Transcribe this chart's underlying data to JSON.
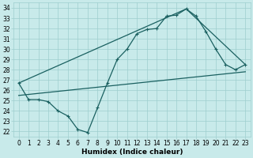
{
  "xlabel": "Humidex (Indice chaleur)",
  "bg_color": "#c8eaea",
  "grid_color": "#9ecece",
  "line_color": "#1a6060",
  "xlim": [
    -0.5,
    23.5
  ],
  "ylim": [
    21.5,
    34.5
  ],
  "xticks": [
    0,
    1,
    2,
    3,
    4,
    5,
    6,
    7,
    8,
    9,
    10,
    11,
    12,
    13,
    14,
    15,
    16,
    17,
    18,
    19,
    20,
    21,
    22,
    23
  ],
  "yticks": [
    22,
    23,
    24,
    25,
    26,
    27,
    28,
    29,
    30,
    31,
    32,
    33,
    34
  ],
  "line1_x": [
    0,
    1,
    2,
    3,
    4,
    5,
    6,
    7,
    8,
    9,
    10,
    11,
    12,
    13,
    14,
    15,
    16,
    17,
    18,
    19,
    20,
    21,
    22,
    23
  ],
  "line1_y": [
    26.7,
    25.1,
    25.1,
    24.9,
    24.0,
    23.5,
    22.2,
    21.9,
    24.3,
    26.7,
    29.0,
    30.0,
    31.5,
    31.9,
    32.0,
    33.2,
    33.3,
    33.9,
    33.2,
    31.7,
    30.0,
    28.5,
    28.0,
    28.5
  ],
  "line2_x": [
    0,
    17,
    23
  ],
  "line2_y": [
    26.7,
    33.9,
    28.5
  ],
  "line3_x": [
    0,
    23
  ],
  "line3_y": [
    25.5,
    27.8
  ],
  "fontsize_label": 6.5,
  "tick_fontsize": 5.5
}
